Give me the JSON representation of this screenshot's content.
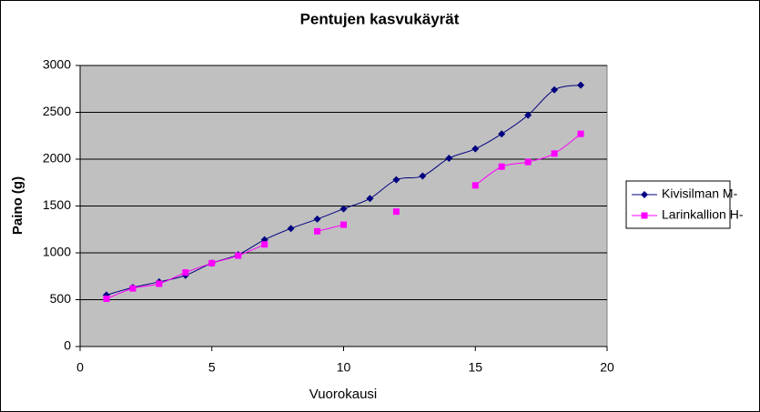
{
  "chart_data": {
    "type": "line",
    "title": "Pentujen kasvukäyrät",
    "x_label": "Vuorokausi",
    "y_label": "Paino (g)",
    "x": [
      1,
      2,
      3,
      4,
      5,
      6,
      7,
      8,
      9,
      10,
      11,
      12,
      13,
      14,
      15,
      16,
      17,
      18,
      19
    ],
    "series": [
      {
        "name": "Kivisilman M-",
        "color": "#000080",
        "marker": "diamond",
        "values": [
          550,
          630,
          690,
          760,
          890,
          980,
          1140,
          1260,
          1360,
          1470,
          1580,
          1780,
          1820,
          2010,
          2110,
          2270,
          2470,
          2740,
          2790
        ]
      },
      {
        "name": "Larinkallion H-",
        "color": "#ff00ff",
        "marker": "square",
        "values": [
          510,
          620,
          670,
          790,
          890,
          970,
          1090,
          null,
          1230,
          1300,
          null,
          1440,
          null,
          null,
          1720,
          1920,
          1970,
          2060,
          2270
        ]
      }
    ],
    "xlim": [
      0,
      20
    ],
    "xticks": [
      0,
      5,
      10,
      15,
      20
    ],
    "ylim": [
      0,
      3000
    ],
    "yticks": [
      0,
      500,
      1000,
      1500,
      2000,
      2500,
      3000
    ],
    "grid": true,
    "smooth": true,
    "legend": "right"
  }
}
